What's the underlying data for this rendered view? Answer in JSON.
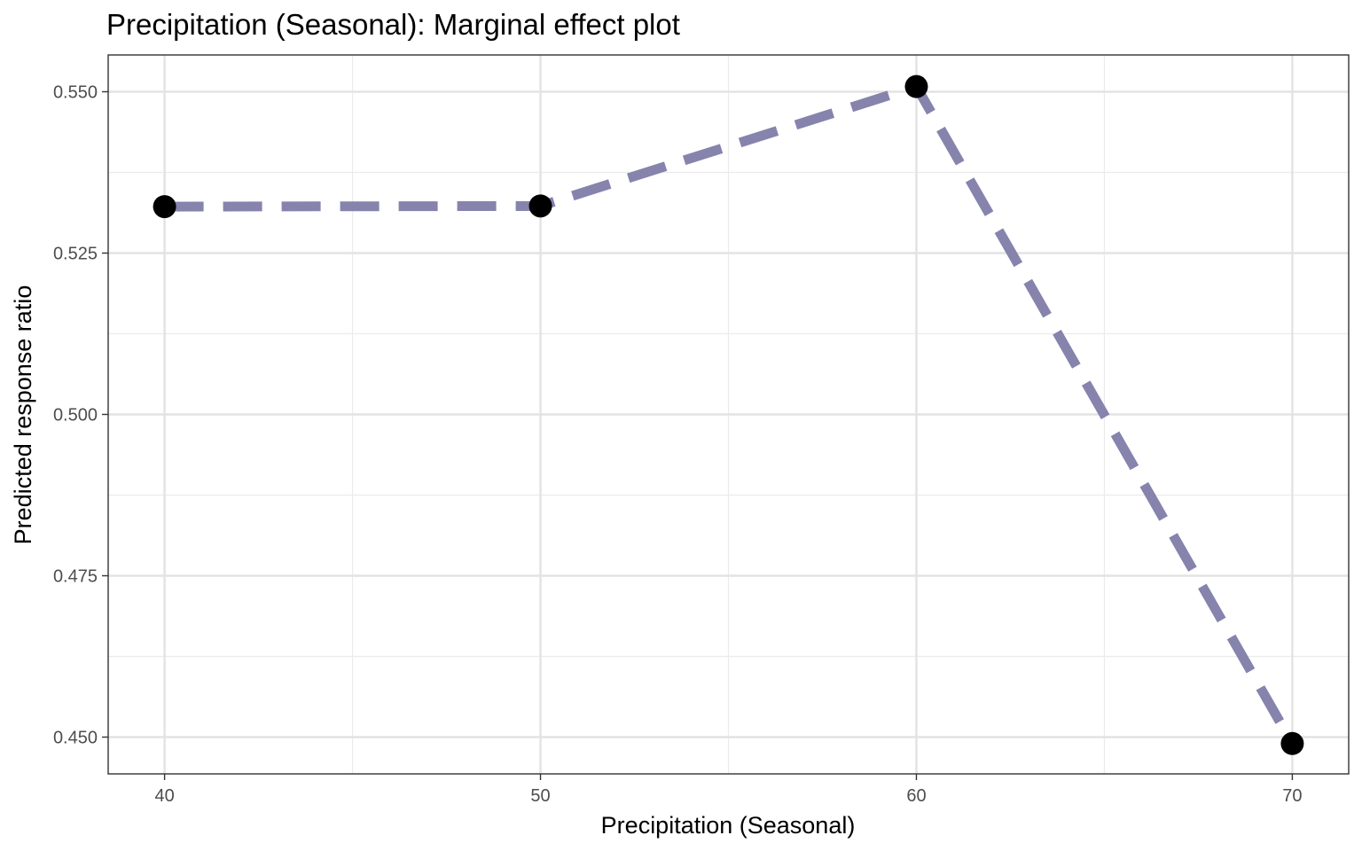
{
  "chart_data": {
    "type": "line",
    "title": "Precipitation (Seasonal): Marginal effect plot",
    "xlabel": "Precipitation (Seasonal)",
    "ylabel": "Predicted response ratio",
    "x_ticks": [
      "40",
      "50",
      "60",
      "70"
    ],
    "y_ticks": [
      "0.450",
      "0.475",
      "0.500",
      "0.525",
      "0.550"
    ],
    "xlim": [
      38.5,
      71.5
    ],
    "ylim": [
      0.4443,
      0.5557
    ],
    "grid": true,
    "legend": "none",
    "series": [
      {
        "x": [
          40,
          50,
          60,
          70
        ],
        "y": [
          0.5322,
          0.5323,
          0.5508,
          0.449
        ],
        "line_color": "#8683ad",
        "line_style": "dashed",
        "point_color": "#000000"
      }
    ]
  }
}
